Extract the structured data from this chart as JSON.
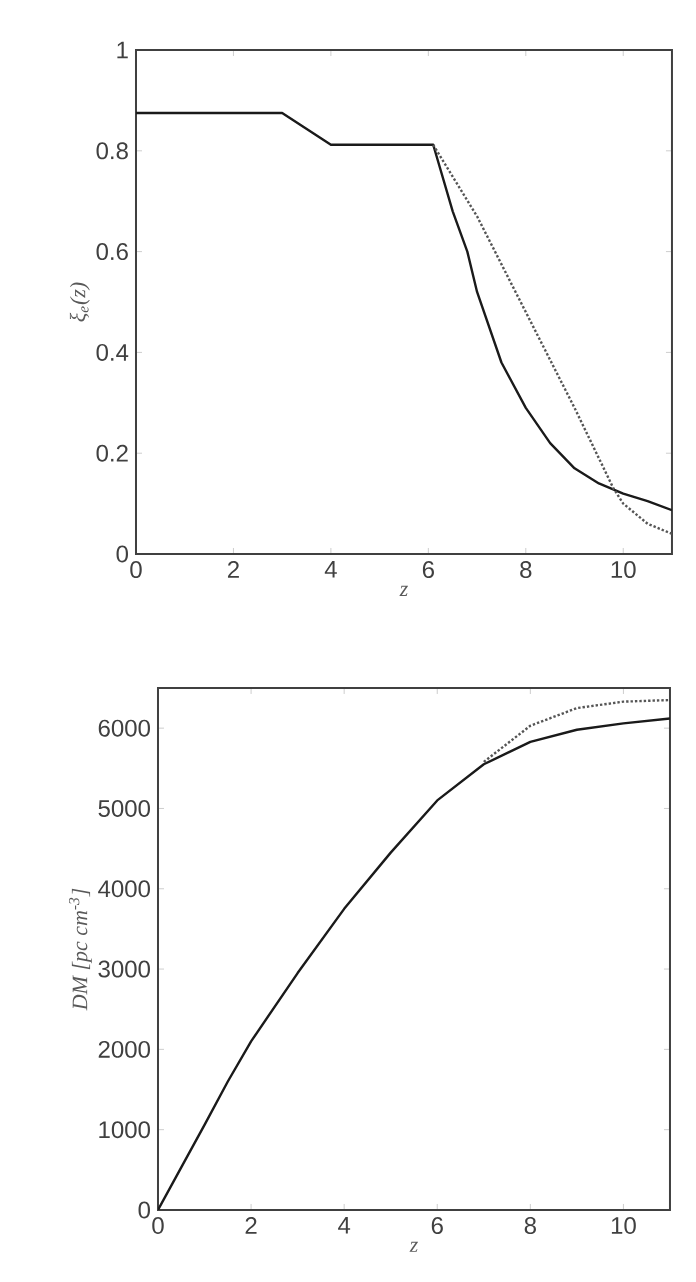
{
  "chart_data": [
    {
      "type": "line",
      "xlabel": "z",
      "ylabel": "ξ$_{e}$(z)",
      "xlim": [
        0,
        11
      ],
      "ylim": [
        0,
        1
      ],
      "xticks": [
        0,
        2,
        4,
        6,
        8,
        10
      ],
      "yticks": [
        0,
        0.2,
        0.4,
        0.6,
        0.8,
        1
      ],
      "series": [
        {
          "color": "#1a1a1a",
          "line_style": "solid",
          "x": [
            0,
            3,
            4,
            6.1,
            6.5,
            6.8,
            7,
            7.5,
            8,
            8.5,
            9,
            9.5,
            10,
            10.5,
            11
          ],
          "values": [
            0.875,
            0.875,
            0.812,
            0.812,
            0.68,
            0.6,
            0.52,
            0.38,
            0.29,
            0.22,
            0.17,
            0.14,
            0.12,
            0.105,
            0.087
          ]
        },
        {
          "color": "#555555",
          "line_style": "dotted",
          "x": [
            6.1,
            7,
            8,
            9,
            9.8,
            10,
            10.5,
            11
          ],
          "values": [
            0.812,
            0.67,
            0.48,
            0.29,
            0.13,
            0.1,
            0.06,
            0.04
          ]
        }
      ]
    },
    {
      "type": "line",
      "xlabel": "z",
      "ylabel": "DM [pc cm$^{-3}$]",
      "xlim": [
        0,
        11
      ],
      "ylim": [
        0,
        6500
      ],
      "xticks": [
        0,
        2,
        4,
        6,
        8,
        10
      ],
      "yticks": [
        0,
        1000,
        2000,
        3000,
        4000,
        5000,
        6000
      ],
      "series": [
        {
          "color": "#1a1a1a",
          "line_style": "solid",
          "x": [
            0,
            0.5,
            1,
            1.5,
            2,
            3,
            4,
            5,
            6,
            7,
            8,
            9,
            10,
            11
          ],
          "values": [
            0,
            530,
            1060,
            1600,
            2100,
            2950,
            3750,
            4450,
            5100,
            5550,
            5830,
            5980,
            6060,
            6120
          ]
        },
        {
          "color": "#555555",
          "line_style": "dotted",
          "x": [
            7,
            8,
            9,
            10,
            11
          ],
          "values": [
            5580,
            6030,
            6250,
            6330,
            6350
          ]
        }
      ]
    }
  ]
}
